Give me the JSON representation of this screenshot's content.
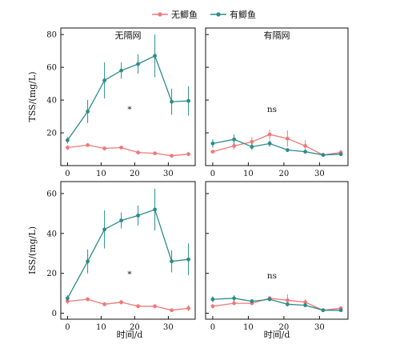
{
  "legend": {
    "items": [
      {
        "label": "无鲫鱼",
        "color": "#f07878"
      },
      {
        "label": "有鲫鱼",
        "color": "#2a8c8c"
      }
    ]
  },
  "chart_data": [
    {
      "type": "line",
      "panel": "top-left",
      "title": "无隔网",
      "ylabel": "TSS/(mg/L)",
      "xlabel": "",
      "annotation": "*",
      "xlim": [
        -2,
        38
      ],
      "ylim": [
        0,
        84
      ],
      "xticks": [
        0,
        10,
        20,
        30
      ],
      "yticks": [
        20,
        40,
        60,
        80
      ],
      "x": [
        0,
        6,
        11,
        16,
        21,
        26,
        31,
        36
      ],
      "series": [
        {
          "name": "无鲫鱼",
          "color": "#f07878",
          "values": [
            11,
            12.5,
            10.5,
            11,
            8,
            7.5,
            6,
            7
          ],
          "errors": [
            1.5,
            1,
            0.8,
            1,
            1,
            0.8,
            0.8,
            1.2
          ]
        },
        {
          "name": "有鲫鱼",
          "color": "#2a8c8c",
          "values": [
            15.5,
            33,
            52,
            58,
            62,
            67,
            39,
            39.5
          ],
          "errors": [
            2,
            7,
            11,
            5,
            6,
            13,
            8,
            9
          ]
        }
      ]
    },
    {
      "type": "line",
      "panel": "top-right",
      "title": "有隔网",
      "ylabel": "",
      "xlabel": "",
      "annotation": "ns",
      "xlim": [
        -2,
        38
      ],
      "ylim": [
        0,
        84
      ],
      "xticks": [
        0,
        10,
        20,
        30
      ],
      "yticks": [
        20,
        40,
        60,
        80
      ],
      "x": [
        0,
        6,
        11,
        16,
        21,
        26,
        31,
        36
      ],
      "series": [
        {
          "name": "无鲫鱼",
          "color": "#f07878",
          "values": [
            8.5,
            12,
            14.5,
            19,
            16.5,
            12,
            6.5,
            8
          ],
          "errors": [
            1,
            2,
            3,
            3,
            5,
            3.5,
            1,
            1.5
          ]
        },
        {
          "name": "有鲫鱼",
          "color": "#2a8c8c",
          "values": [
            13.5,
            16,
            11.5,
            13.5,
            9.5,
            8.5,
            6.5,
            7
          ],
          "errors": [
            2.5,
            3,
            2,
            2,
            1,
            1,
            1,
            1
          ]
        }
      ]
    },
    {
      "type": "line",
      "panel": "bottom-left",
      "title": "",
      "ylabel": "ISS/(mg/L)",
      "xlabel": "时间/d",
      "annotation": "*",
      "xlim": [
        -2,
        38
      ],
      "ylim": [
        -3,
        66
      ],
      "xticks": [
        0,
        10,
        20,
        30
      ],
      "yticks": [
        0,
        20,
        40,
        60
      ],
      "x": [
        0,
        6,
        11,
        16,
        21,
        26,
        31,
        36
      ],
      "series": [
        {
          "name": "无鲫鱼",
          "color": "#f07878",
          "values": [
            6,
            7,
            4.5,
            5.5,
            3.5,
            3.5,
            1.5,
            2.5
          ],
          "errors": [
            1.5,
            1,
            1,
            1.2,
            1,
            1,
            0.5,
            1.5
          ]
        },
        {
          "name": "有鲫鱼",
          "color": "#2a8c8c",
          "values": [
            7.5,
            26,
            42,
            46.5,
            49,
            52,
            26,
            27
          ],
          "errors": [
            1.5,
            6,
            9.5,
            4,
            5,
            10.5,
            5.5,
            8
          ]
        }
      ]
    },
    {
      "type": "line",
      "panel": "bottom-right",
      "title": "",
      "ylabel": "",
      "xlabel": "时间/d",
      "annotation": "ns",
      "xlim": [
        -2,
        38
      ],
      "ylim": [
        -3,
        66
      ],
      "xticks": [
        0,
        10,
        20,
        30
      ],
      "yticks": [
        0,
        20,
        40,
        60
      ],
      "x": [
        0,
        6,
        11,
        16,
        21,
        26,
        31,
        36
      ],
      "series": [
        {
          "name": "无鲫鱼",
          "color": "#f07878",
          "values": [
            3.5,
            5,
            5,
            7.5,
            6.5,
            5.5,
            1.5,
            2.5
          ],
          "errors": [
            1,
            1,
            1,
            1,
            3,
            1.5,
            0.5,
            1
          ]
        },
        {
          "name": "有鲫鱼",
          "color": "#2a8c8c",
          "values": [
            7,
            7.5,
            6,
            7,
            4.5,
            4,
            1.5,
            1.5
          ],
          "errors": [
            1.5,
            1.5,
            1,
            1,
            1,
            1,
            0.5,
            0.5
          ]
        }
      ]
    }
  ]
}
